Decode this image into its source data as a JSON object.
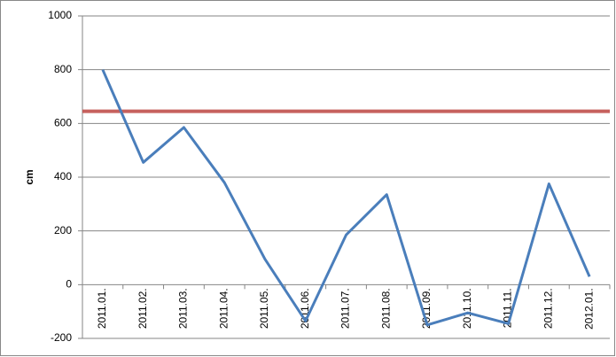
{
  "chart_data": {
    "type": "line",
    "y_label": "cm",
    "categories": [
      "2011.01.",
      "2011.02.",
      "2011.03.",
      "2011.04.",
      "2011.05.",
      "2011.06.",
      "2011.07.",
      "2011.08.",
      "2011.09.",
      "2011.10.",
      "2011.11.",
      "2011.12.",
      "2012.01."
    ],
    "series": [
      {
        "color": "#4a7ebb",
        "values": [
          800,
          455,
          585,
          380,
          95,
          -135,
          185,
          335,
          -150,
          -105,
          -145,
          375,
          30
        ]
      }
    ],
    "reference_line": {
      "value": 645,
      "color": "#c0504d"
    },
    "ylim": [
      -200,
      1000
    ],
    "yticks": [
      -200,
      0,
      200,
      400,
      600,
      800,
      1000
    ],
    "grid": true
  }
}
